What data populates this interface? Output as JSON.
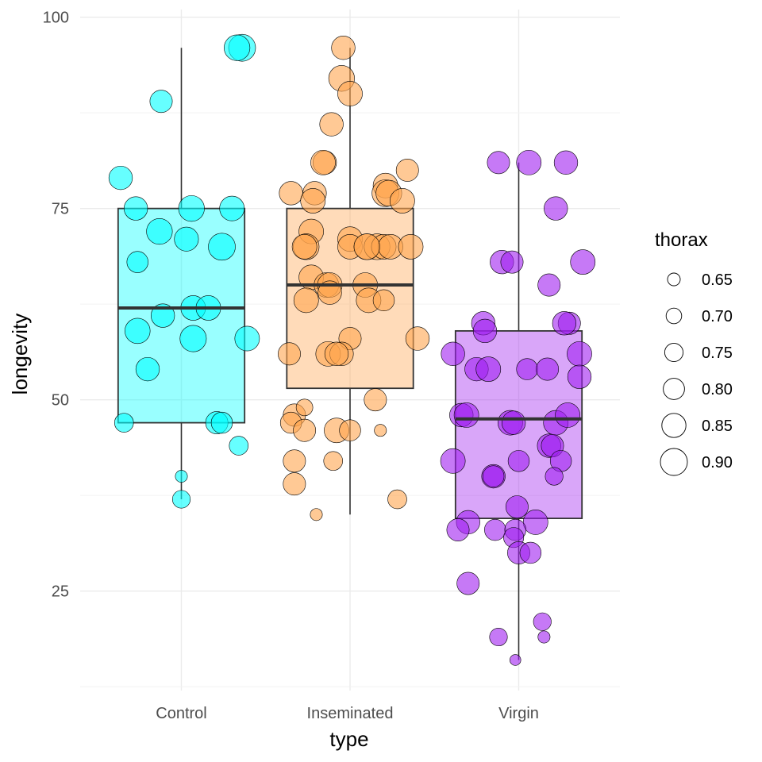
{
  "chart_data": {
    "type": "box",
    "xlabel": "type",
    "ylabel": "longevity",
    "categories": [
      "Control",
      "Inseminated",
      "Virgin"
    ],
    "colors": {
      "Control": "#00FFFF",
      "Inseminated": "#FFA54F",
      "Virgin": "#A020F0"
    },
    "ylim": [
      12,
      101
    ],
    "yticks": [
      25,
      50,
      75,
      100
    ],
    "grid": true,
    "legend": {
      "title": "thorax",
      "position": "right",
      "entries": [
        "0.65",
        "0.70",
        "0.75",
        "0.80",
        "0.85",
        "0.90"
      ],
      "values": [
        0.65,
        0.7,
        0.75,
        0.8,
        0.85,
        0.9
      ]
    },
    "boxes": [
      {
        "category": "Control",
        "lower_whisker": 37,
        "q1": 47,
        "median": 62,
        "q3": 75,
        "upper_whisker": 96
      },
      {
        "category": "Inseminated",
        "lower_whisker": 35,
        "q1": 51.5,
        "median": 65,
        "q3": 75,
        "upper_whisker": 96
      },
      {
        "category": "Virgin",
        "lower_whisker": 16,
        "q1": 34.5,
        "median": 47.5,
        "q3": 59,
        "upper_whisker": 81
      }
    ],
    "points": [
      {
        "type": "Control",
        "jitter": 0.36,
        "longevity": 96,
        "thorax": 0.9
      },
      {
        "type": "Control",
        "jitter": 0.33,
        "longevity": 96,
        "thorax": 0.88
      },
      {
        "type": "Control",
        "jitter": -0.12,
        "longevity": 89,
        "thorax": 0.82
      },
      {
        "type": "Control",
        "jitter": -0.36,
        "longevity": 79,
        "thorax": 0.84
      },
      {
        "type": "Control",
        "jitter": -0.27,
        "longevity": 75,
        "thorax": 0.84
      },
      {
        "type": "Control",
        "jitter": 0.06,
        "longevity": 75,
        "thorax": 0.88
      },
      {
        "type": "Control",
        "jitter": 0.3,
        "longevity": 75,
        "thorax": 0.86
      },
      {
        "type": "Control",
        "jitter": -0.13,
        "longevity": 72,
        "thorax": 0.88
      },
      {
        "type": "Control",
        "jitter": 0.03,
        "longevity": 71,
        "thorax": 0.85
      },
      {
        "type": "Control",
        "jitter": 0.24,
        "longevity": 70,
        "thorax": 0.9
      },
      {
        "type": "Control",
        "jitter": -0.26,
        "longevity": 68,
        "thorax": 0.8
      },
      {
        "type": "Control",
        "jitter": 0.07,
        "longevity": 62,
        "thorax": 0.86
      },
      {
        "type": "Control",
        "jitter": 0.16,
        "longevity": 62,
        "thorax": 0.86
      },
      {
        "type": "Control",
        "jitter": -0.11,
        "longevity": 61,
        "thorax": 0.84
      },
      {
        "type": "Control",
        "jitter": -0.26,
        "longevity": 59,
        "thorax": 0.87
      },
      {
        "type": "Control",
        "jitter": 0.07,
        "longevity": 58,
        "thorax": 0.89
      },
      {
        "type": "Control",
        "jitter": 0.39,
        "longevity": 58,
        "thorax": 0.86
      },
      {
        "type": "Control",
        "jitter": -0.2,
        "longevity": 54,
        "thorax": 0.84
      },
      {
        "type": "Control",
        "jitter": -0.34,
        "longevity": 47,
        "thorax": 0.76
      },
      {
        "type": "Control",
        "jitter": 0.21,
        "longevity": 47,
        "thorax": 0.82
      },
      {
        "type": "Control",
        "jitter": 0.24,
        "longevity": 47,
        "thorax": 0.8
      },
      {
        "type": "Control",
        "jitter": 0.34,
        "longevity": 44,
        "thorax": 0.76
      },
      {
        "type": "Control",
        "jitter": 0.0,
        "longevity": 40,
        "thorax": 0.64
      },
      {
        "type": "Control",
        "jitter": 0.0,
        "longevity": 37,
        "thorax": 0.74
      },
      {
        "type": "Inseminated",
        "jitter": -0.04,
        "longevity": 96,
        "thorax": 0.84
      },
      {
        "type": "Inseminated",
        "jitter": -0.05,
        "longevity": 92,
        "thorax": 0.88
      },
      {
        "type": "Inseminated",
        "jitter": 0.0,
        "longevity": 90,
        "thorax": 0.86
      },
      {
        "type": "Inseminated",
        "jitter": -0.11,
        "longevity": 86,
        "thorax": 0.84
      },
      {
        "type": "Inseminated",
        "jitter": -0.15,
        "longevity": 81,
        "thorax": 0.84
      },
      {
        "type": "Inseminated",
        "jitter": -0.16,
        "longevity": 81,
        "thorax": 0.86
      },
      {
        "type": "Inseminated",
        "jitter": 0.34,
        "longevity": 80,
        "thorax": 0.82
      },
      {
        "type": "Inseminated",
        "jitter": 0.21,
        "longevity": 78,
        "thorax": 0.86
      },
      {
        "type": "Inseminated",
        "jitter": 0.21,
        "longevity": 77,
        "thorax": 0.9
      },
      {
        "type": "Inseminated",
        "jitter": 0.23,
        "longevity": 77,
        "thorax": 0.88
      },
      {
        "type": "Inseminated",
        "jitter": -0.35,
        "longevity": 77,
        "thorax": 0.84
      },
      {
        "type": "Inseminated",
        "jitter": -0.21,
        "longevity": 77,
        "thorax": 0.84
      },
      {
        "type": "Inseminated",
        "jitter": -0.22,
        "longevity": 76,
        "thorax": 0.86
      },
      {
        "type": "Inseminated",
        "jitter": 0.31,
        "longevity": 76,
        "thorax": 0.86
      },
      {
        "type": "Inseminated",
        "jitter": -0.23,
        "longevity": 72,
        "thorax": 0.86
      },
      {
        "type": "Inseminated",
        "jitter": 0.0,
        "longevity": 71,
        "thorax": 0.86
      },
      {
        "type": "Inseminated",
        "jitter": -0.26,
        "longevity": 70,
        "thorax": 0.88
      },
      {
        "type": "Inseminated",
        "jitter": -0.27,
        "longevity": 70,
        "thorax": 0.86
      },
      {
        "type": "Inseminated",
        "jitter": 0.0,
        "longevity": 70,
        "thorax": 0.86
      },
      {
        "type": "Inseminated",
        "jitter": 0.1,
        "longevity": 70,
        "thorax": 0.88
      },
      {
        "type": "Inseminated",
        "jitter": 0.16,
        "longevity": 70,
        "thorax": 0.88
      },
      {
        "type": "Inseminated",
        "jitter": 0.2,
        "longevity": 70,
        "thorax": 0.86
      },
      {
        "type": "Inseminated",
        "jitter": 0.24,
        "longevity": 70,
        "thorax": 0.86
      },
      {
        "type": "Inseminated",
        "jitter": 0.36,
        "longevity": 70,
        "thorax": 0.86
      },
      {
        "type": "Inseminated",
        "jitter": 0.1,
        "longevity": 70,
        "thorax": 0.88
      },
      {
        "type": "Inseminated",
        "jitter": -0.23,
        "longevity": 66,
        "thorax": 0.86
      },
      {
        "type": "Inseminated",
        "jitter": -0.14,
        "longevity": 65,
        "thorax": 0.86
      },
      {
        "type": "Inseminated",
        "jitter": -0.12,
        "longevity": 65,
        "thorax": 0.86
      },
      {
        "type": "Inseminated",
        "jitter": 0.09,
        "longevity": 65,
        "thorax": 0.86
      },
      {
        "type": "Inseminated",
        "jitter": -0.12,
        "longevity": 64,
        "thorax": 0.84
      },
      {
        "type": "Inseminated",
        "jitter": -0.26,
        "longevity": 63,
        "thorax": 0.86
      },
      {
        "type": "Inseminated",
        "jitter": 0.11,
        "longevity": 63,
        "thorax": 0.86
      },
      {
        "type": "Inseminated",
        "jitter": 0.2,
        "longevity": 63,
        "thorax": 0.8
      },
      {
        "type": "Inseminated",
        "jitter": 0.0,
        "longevity": 58,
        "thorax": 0.82
      },
      {
        "type": "Inseminated",
        "jitter": 0.4,
        "longevity": 58,
        "thorax": 0.84
      },
      {
        "type": "Inseminated",
        "jitter": -0.36,
        "longevity": 56,
        "thorax": 0.82
      },
      {
        "type": "Inseminated",
        "jitter": -0.13,
        "longevity": 56,
        "thorax": 0.86
      },
      {
        "type": "Inseminated",
        "jitter": -0.05,
        "longevity": 56,
        "thorax": 0.84
      },
      {
        "type": "Inseminated",
        "jitter": -0.08,
        "longevity": 56,
        "thorax": 0.84
      },
      {
        "type": "Inseminated",
        "jitter": 0.15,
        "longevity": 50,
        "thorax": 0.82
      },
      {
        "type": "Inseminated",
        "jitter": -0.33,
        "longevity": 48,
        "thorax": 0.82
      },
      {
        "type": "Inseminated",
        "jitter": -0.27,
        "longevity": 49,
        "thorax": 0.72
      },
      {
        "type": "Inseminated",
        "jitter": -0.35,
        "longevity": 47,
        "thorax": 0.8
      },
      {
        "type": "Inseminated",
        "jitter": -0.27,
        "longevity": 46,
        "thorax": 0.82
      },
      {
        "type": "Inseminated",
        "jitter": -0.08,
        "longevity": 46,
        "thorax": 0.86
      },
      {
        "type": "Inseminated",
        "jitter": 0.0,
        "longevity": 46,
        "thorax": 0.8
      },
      {
        "type": "Inseminated",
        "jitter": 0.18,
        "longevity": 46,
        "thorax": 0.64
      },
      {
        "type": "Inseminated",
        "jitter": -0.33,
        "longevity": 42,
        "thorax": 0.82
      },
      {
        "type": "Inseminated",
        "jitter": -0.1,
        "longevity": 42,
        "thorax": 0.76
      },
      {
        "type": "Inseminated",
        "jitter": -0.33,
        "longevity": 39,
        "thorax": 0.82
      },
      {
        "type": "Inseminated",
        "jitter": 0.28,
        "longevity": 37,
        "thorax": 0.76
      },
      {
        "type": "Inseminated",
        "jitter": -0.2,
        "longevity": 35,
        "thorax": 0.64
      },
      {
        "type": "Virgin",
        "jitter": -0.12,
        "longevity": 81,
        "thorax": 0.82
      },
      {
        "type": "Virgin",
        "jitter": 0.06,
        "longevity": 81,
        "thorax": 0.86
      },
      {
        "type": "Virgin",
        "jitter": 0.28,
        "longevity": 81,
        "thorax": 0.84
      },
      {
        "type": "Virgin",
        "jitter": 0.22,
        "longevity": 75,
        "thorax": 0.84
      },
      {
        "type": "Virgin",
        "jitter": 0.38,
        "longevity": 68,
        "thorax": 0.86
      },
      {
        "type": "Virgin",
        "jitter": -0.1,
        "longevity": 68,
        "thorax": 0.84
      },
      {
        "type": "Virgin",
        "jitter": -0.04,
        "longevity": 68,
        "thorax": 0.82
      },
      {
        "type": "Virgin",
        "jitter": 0.18,
        "longevity": 65,
        "thorax": 0.82
      },
      {
        "type": "Virgin",
        "jitter": -0.21,
        "longevity": 60,
        "thorax": 0.84
      },
      {
        "type": "Virgin",
        "jitter": -0.2,
        "longevity": 59,
        "thorax": 0.84
      },
      {
        "type": "Virgin",
        "jitter": 0.3,
        "longevity": 60,
        "thorax": 0.82
      },
      {
        "type": "Virgin",
        "jitter": 0.27,
        "longevity": 60,
        "thorax": 0.84
      },
      {
        "type": "Virgin",
        "jitter": -0.39,
        "longevity": 56,
        "thorax": 0.84
      },
      {
        "type": "Virgin",
        "jitter": 0.36,
        "longevity": 56,
        "thorax": 0.86
      },
      {
        "type": "Virgin",
        "jitter": -0.25,
        "longevity": 54,
        "thorax": 0.84
      },
      {
        "type": "Virgin",
        "jitter": -0.18,
        "longevity": 54,
        "thorax": 0.86
      },
      {
        "type": "Virgin",
        "jitter": 0.05,
        "longevity": 54,
        "thorax": 0.8
      },
      {
        "type": "Virgin",
        "jitter": 0.17,
        "longevity": 54,
        "thorax": 0.82
      },
      {
        "type": "Virgin",
        "jitter": 0.36,
        "longevity": 53,
        "thorax": 0.84
      },
      {
        "type": "Virgin",
        "jitter": -0.34,
        "longevity": 48,
        "thorax": 0.84
      },
      {
        "type": "Virgin",
        "jitter": -0.31,
        "longevity": 48,
        "thorax": 0.86
      },
      {
        "type": "Virgin",
        "jitter": -0.05,
        "longevity": 47,
        "thorax": 0.86
      },
      {
        "type": "Virgin",
        "jitter": -0.03,
        "longevity": 47,
        "thorax": 0.84
      },
      {
        "type": "Virgin",
        "jitter": 0.22,
        "longevity": 47,
        "thorax": 0.86
      },
      {
        "type": "Virgin",
        "jitter": 0.29,
        "longevity": 48,
        "thorax": 0.86
      },
      {
        "type": "Virgin",
        "jitter": 0.18,
        "longevity": 44,
        "thorax": 0.84
      },
      {
        "type": "Virgin",
        "jitter": 0.2,
        "longevity": 44,
        "thorax": 0.82
      },
      {
        "type": "Virgin",
        "jitter": -0.39,
        "longevity": 42,
        "thorax": 0.86
      },
      {
        "type": "Virgin",
        "jitter": 0.0,
        "longevity": 42,
        "thorax": 0.8
      },
      {
        "type": "Virgin",
        "jitter": 0.25,
        "longevity": 42,
        "thorax": 0.8
      },
      {
        "type": "Virgin",
        "jitter": -0.15,
        "longevity": 40,
        "thorax": 0.84
      },
      {
        "type": "Virgin",
        "jitter": -0.15,
        "longevity": 40,
        "thorax": 0.8
      },
      {
        "type": "Virgin",
        "jitter": 0.21,
        "longevity": 40,
        "thorax": 0.74
      },
      {
        "type": "Virgin",
        "jitter": -0.01,
        "longevity": 36,
        "thorax": 0.82
      },
      {
        "type": "Virgin",
        "jitter": -0.3,
        "longevity": 34,
        "thorax": 0.84
      },
      {
        "type": "Virgin",
        "jitter": -0.36,
        "longevity": 33,
        "thorax": 0.82
      },
      {
        "type": "Virgin",
        "jitter": 0.1,
        "longevity": 34,
        "thorax": 0.86
      },
      {
        "type": "Virgin",
        "jitter": -0.14,
        "longevity": 33,
        "thorax": 0.8
      },
      {
        "type": "Virgin",
        "jitter": -0.02,
        "longevity": 33,
        "thorax": 0.8
      },
      {
        "type": "Virgin",
        "jitter": -0.03,
        "longevity": 32,
        "thorax": 0.78
      },
      {
        "type": "Virgin",
        "jitter": 0.0,
        "longevity": 30,
        "thorax": 0.82
      },
      {
        "type": "Virgin",
        "jitter": 0.07,
        "longevity": 30,
        "thorax": 0.8
      },
      {
        "type": "Virgin",
        "jitter": -0.3,
        "longevity": 26,
        "thorax": 0.82
      },
      {
        "type": "Virgin",
        "jitter": 0.14,
        "longevity": 21,
        "thorax": 0.74
      },
      {
        "type": "Virgin",
        "jitter": -0.12,
        "longevity": 19,
        "thorax": 0.74
      },
      {
        "type": "Virgin",
        "jitter": 0.15,
        "longevity": 19,
        "thorax": 0.64
      },
      {
        "type": "Virgin",
        "jitter": -0.02,
        "longevity": 16,
        "thorax": 0.62
      }
    ]
  }
}
